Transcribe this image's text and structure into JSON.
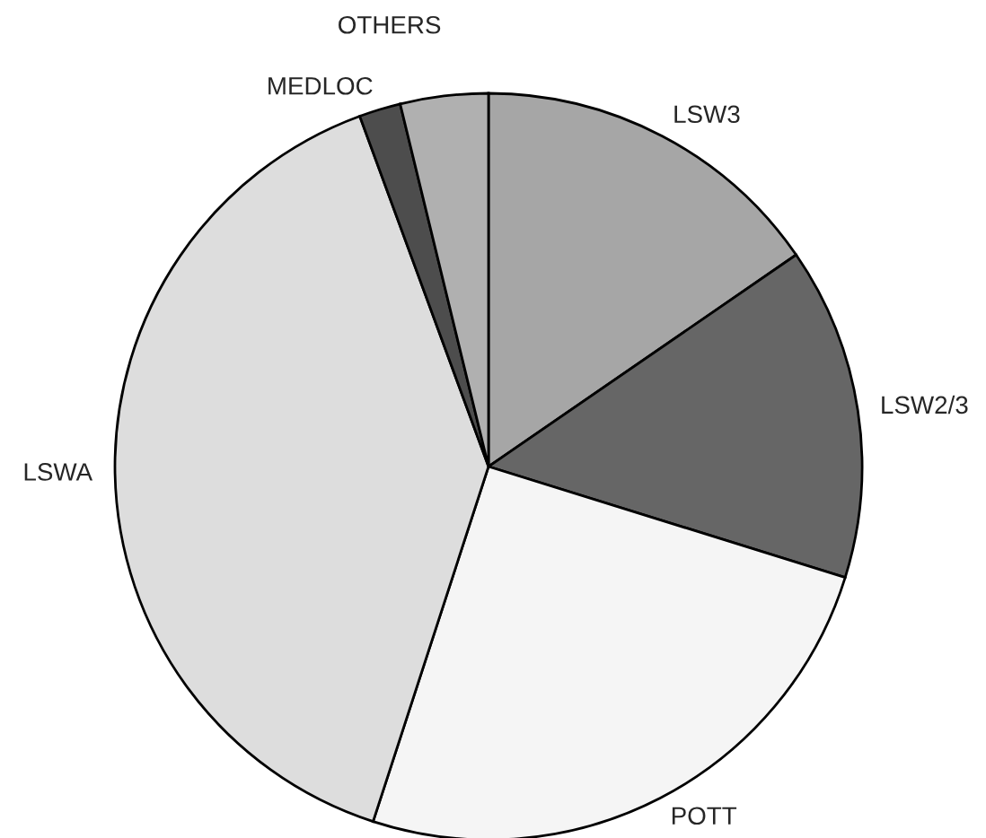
{
  "chart_data": {
    "type": "pie",
    "categories": [
      "LSW3",
      "LSW2/3",
      "POTT",
      "LSWA",
      "MEDLOC",
      "OTHERS"
    ],
    "values": [
      15.4,
      14.4,
      25.2,
      39.4,
      1.8,
      3.8
    ],
    "colors": [
      "#a6a6a6",
      "#666666",
      "#f5f5f5",
      "#dddddd",
      "#4d4d4d",
      "#b0b0b0"
    ],
    "legend": false
  }
}
